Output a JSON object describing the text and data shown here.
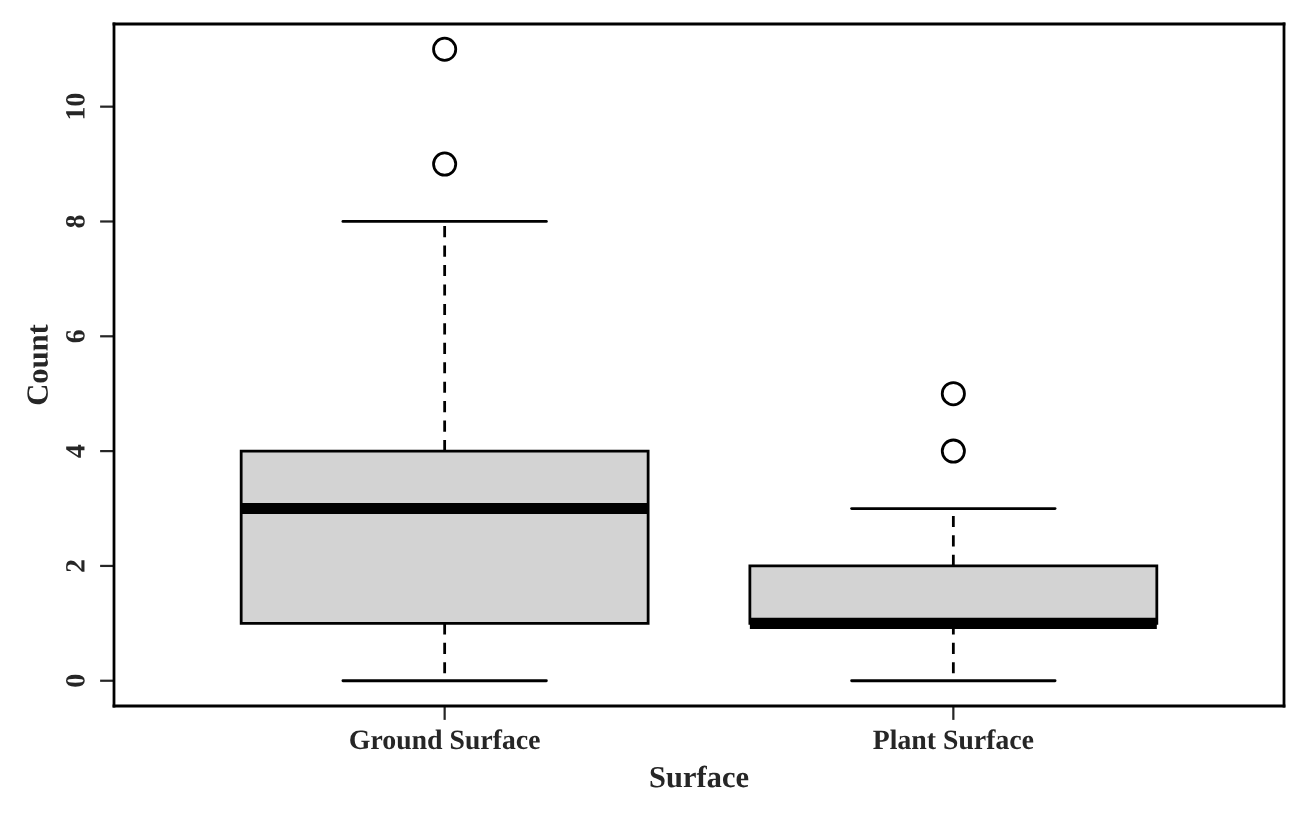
{
  "chart_data": {
    "type": "box",
    "xlabel": "Surface",
    "ylabel": "Count",
    "categories": [
      "Ground Surface",
      "Plant Surface"
    ],
    "boxes": [
      {
        "low": 0,
        "q1": 1,
        "median": 3,
        "q3": 4,
        "high": 8,
        "outliers": [
          9,
          11
        ]
      },
      {
        "low": 0,
        "q1": 1,
        "median": 1,
        "q3": 2,
        "high": 3,
        "outliers": [
          4,
          5
        ]
      }
    ],
    "color": "#d3d3d3",
    "ylim": [
      -0.44,
      11.44
    ],
    "yticks": [
      0,
      2,
      4,
      6,
      8,
      10
    ],
    "grid": false,
    "legend": false
  }
}
